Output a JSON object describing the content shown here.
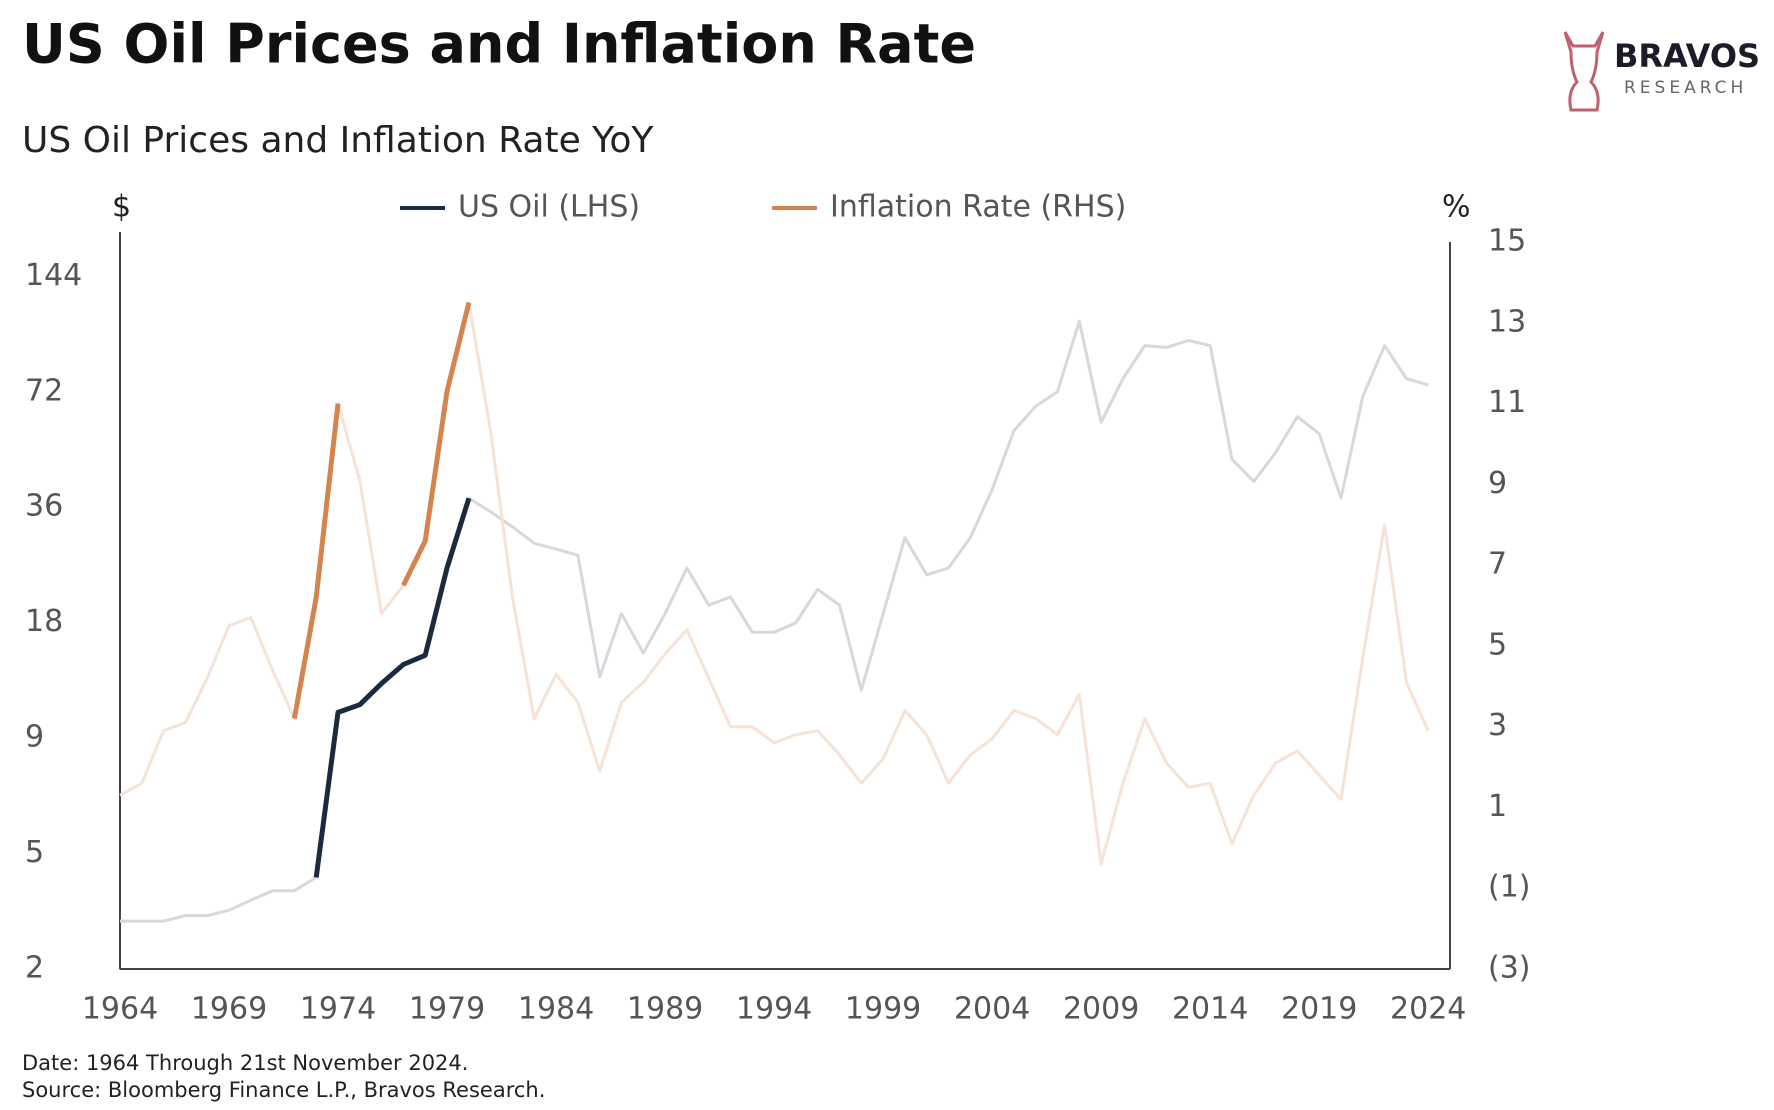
{
  "chart_data": {
    "type": "line",
    "title": "US Oil Prices and Inflation Rate",
    "subtitle": "US Oil Prices and Inflation Rate YoY",
    "brand": "BRAVOS",
    "brand_sub": "RESEARCH",
    "y_label": "$",
    "y2_label": "%",
    "notes": [
      "Date: 1964 Through 21st November 2024.",
      "Source: Bloomberg Finance L.P., Bravos Research."
    ],
    "x": [
      1964,
      1965,
      1966,
      1967,
      1968,
      1969,
      1970,
      1971,
      1972,
      1973,
      1974,
      1975,
      1976,
      1977,
      1978,
      1979,
      1980,
      1981,
      1982,
      1983,
      1984,
      1985,
      1986,
      1987,
      1988,
      1989,
      1990,
      1991,
      1992,
      1993,
      1994,
      1995,
      1996,
      1997,
      1998,
      1999,
      2000,
      2001,
      2002,
      2003,
      2004,
      2005,
      2006,
      2007,
      2008,
      2009,
      2010,
      2011,
      2012,
      2013,
      2014,
      2015,
      2016,
      2017,
      2018,
      2019,
      2020,
      2021,
      2022,
      2023,
      2024
    ],
    "xlim": [
      1964,
      2025
    ],
    "xticks": [
      1964,
      1969,
      1974,
      1979,
      1984,
      1989,
      1994,
      1999,
      2004,
      2009,
      2014,
      2019,
      2024
    ],
    "log_y": true,
    "log_base": 2,
    "ylim": [
      2.25,
      177
    ],
    "yticks": [
      {
        "value": 2.25,
        "label": "2"
      },
      {
        "value": 4.5,
        "label": "5"
      },
      9,
      18,
      36,
      72,
      144
    ],
    "y2lim": [
      -3,
      15
    ],
    "y2ticks": [
      {
        "value": -3,
        "label": "(3)"
      },
      {
        "value": -1,
        "label": "(1)"
      },
      1,
      3,
      5,
      7,
      9,
      11,
      13,
      15
    ],
    "series": [
      {
        "name": "US Oil (LHS)",
        "color": "#1b2a3d",
        "faded_color": "#d6d8dd",
        "highlight": [
          [
            1973,
            1980
          ]
        ],
        "values": [
          3,
          3,
          3,
          3.1,
          3.1,
          3.2,
          3.4,
          3.6,
          3.6,
          3.9,
          10.5,
          11,
          12.5,
          14,
          14.8,
          25,
          38,
          35,
          32,
          29,
          28,
          27,
          13,
          19,
          15,
          19,
          25,
          20,
          21,
          17,
          17,
          18,
          22,
          20,
          12,
          19,
          30,
          24,
          25,
          30,
          40,
          57,
          66,
          72,
          110,
          60,
          78,
          95,
          94,
          98,
          95,
          48,
          42,
          50,
          62,
          56,
          38,
          70,
          95,
          78,
          75
        ]
      },
      {
        "name": "Inflation Rate (RHS)",
        "color": "#d4844f",
        "faded_color": "#f6e2d6",
        "axis": "y2",
        "highlight": [
          [
            1972,
            1974
          ],
          [
            1977,
            1980
          ]
        ],
        "values": [
          1.3,
          1.6,
          2.9,
          3.1,
          4.2,
          5.5,
          5.7,
          4.4,
          3.2,
          6.2,
          11.0,
          9.1,
          5.8,
          6.5,
          7.6,
          11.3,
          13.5,
          10.3,
          6.2,
          3.2,
          4.3,
          3.6,
          1.9,
          3.6,
          4.1,
          4.8,
          5.4,
          4.2,
          3.0,
          3.0,
          2.6,
          2.8,
          2.9,
          2.3,
          1.6,
          2.2,
          3.4,
          2.8,
          1.6,
          2.3,
          2.7,
          3.4,
          3.2,
          2.8,
          3.8,
          -0.4,
          1.6,
          3.2,
          2.1,
          1.5,
          1.6,
          0.1,
          1.3,
          2.1,
          2.4,
          1.8,
          1.2,
          4.7,
          8.0,
          4.1,
          2.9
        ]
      }
    ]
  }
}
